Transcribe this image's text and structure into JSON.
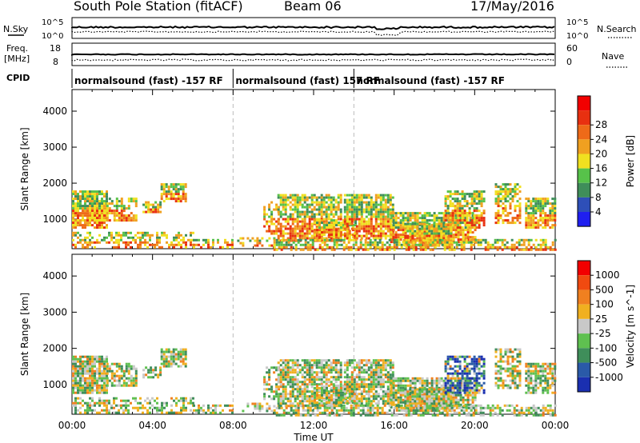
{
  "header": {
    "station": "South Pole Station (fitACF)",
    "beam": "Beam 06",
    "date": "17/May/2016"
  },
  "top_strip": {
    "left_label": "N.Sky",
    "right_label": "N.Search",
    "left_ticks": [
      "10^5",
      "10^0"
    ],
    "right_ticks": [
      "10^5",
      "10^0"
    ]
  },
  "freq_strip": {
    "label_line1": "Freq.",
    "label_line2": "[MHz]",
    "left_ticks": [
      "18",
      "8"
    ],
    "right_ticks": [
      "60",
      "0"
    ],
    "right_label": "Nave"
  },
  "cpid": {
    "label": "CPID",
    "segments": [
      {
        "text": "normalsound (fast) -157 RF",
        "start_h": 0
      },
      {
        "text": "normalsound (fast) 157 RF",
        "start_h": 8
      },
      {
        "text": "normalsound (fast) -157 RF",
        "start_h": 14
      }
    ]
  },
  "chart_data": [
    {
      "type": "heatmap",
      "quantity": "Power",
      "ylabel": "Slant Range [km]",
      "ylim": [
        180,
        4600
      ],
      "yticks": [
        "1000",
        "2000",
        "3000",
        "4000"
      ],
      "colorbar_label": "Power [dB]",
      "colorbar_ticks": [
        "4",
        "8",
        "12",
        "16",
        "20",
        "24",
        "28"
      ],
      "colors": [
        "#1f1ff0",
        "#2e4fb8",
        "#3f8e5a",
        "#57c24a",
        "#f0e020",
        "#f0a020",
        "#ee6a18",
        "#e83010",
        "#f20000"
      ]
    },
    {
      "type": "heatmap",
      "quantity": "Velocity",
      "ylabel": "Slant Range [km]",
      "ylim": [
        180,
        4600
      ],
      "yticks": [
        "1000",
        "2000",
        "3000",
        "4000"
      ],
      "colorbar_label": "Velocity [m s^-1]",
      "colorbar_ticks": [
        "1000",
        "500",
        "100",
        "25",
        "-25",
        "-100",
        "-500",
        "-1000"
      ],
      "colors": [
        "#1a2fb0",
        "#2a5aa8",
        "#3f8e5a",
        "#5fc050",
        "#c8c8c8",
        "#f0b020",
        "#f08020",
        "#f04a10",
        "#f20000"
      ]
    }
  ],
  "x_axis": {
    "label": "Time UT",
    "ticks": [
      "00:00",
      "04:00",
      "08:00",
      "12:00",
      "16:00",
      "20:00",
      "00:00"
    ],
    "range_h": [
      0,
      24
    ]
  }
}
